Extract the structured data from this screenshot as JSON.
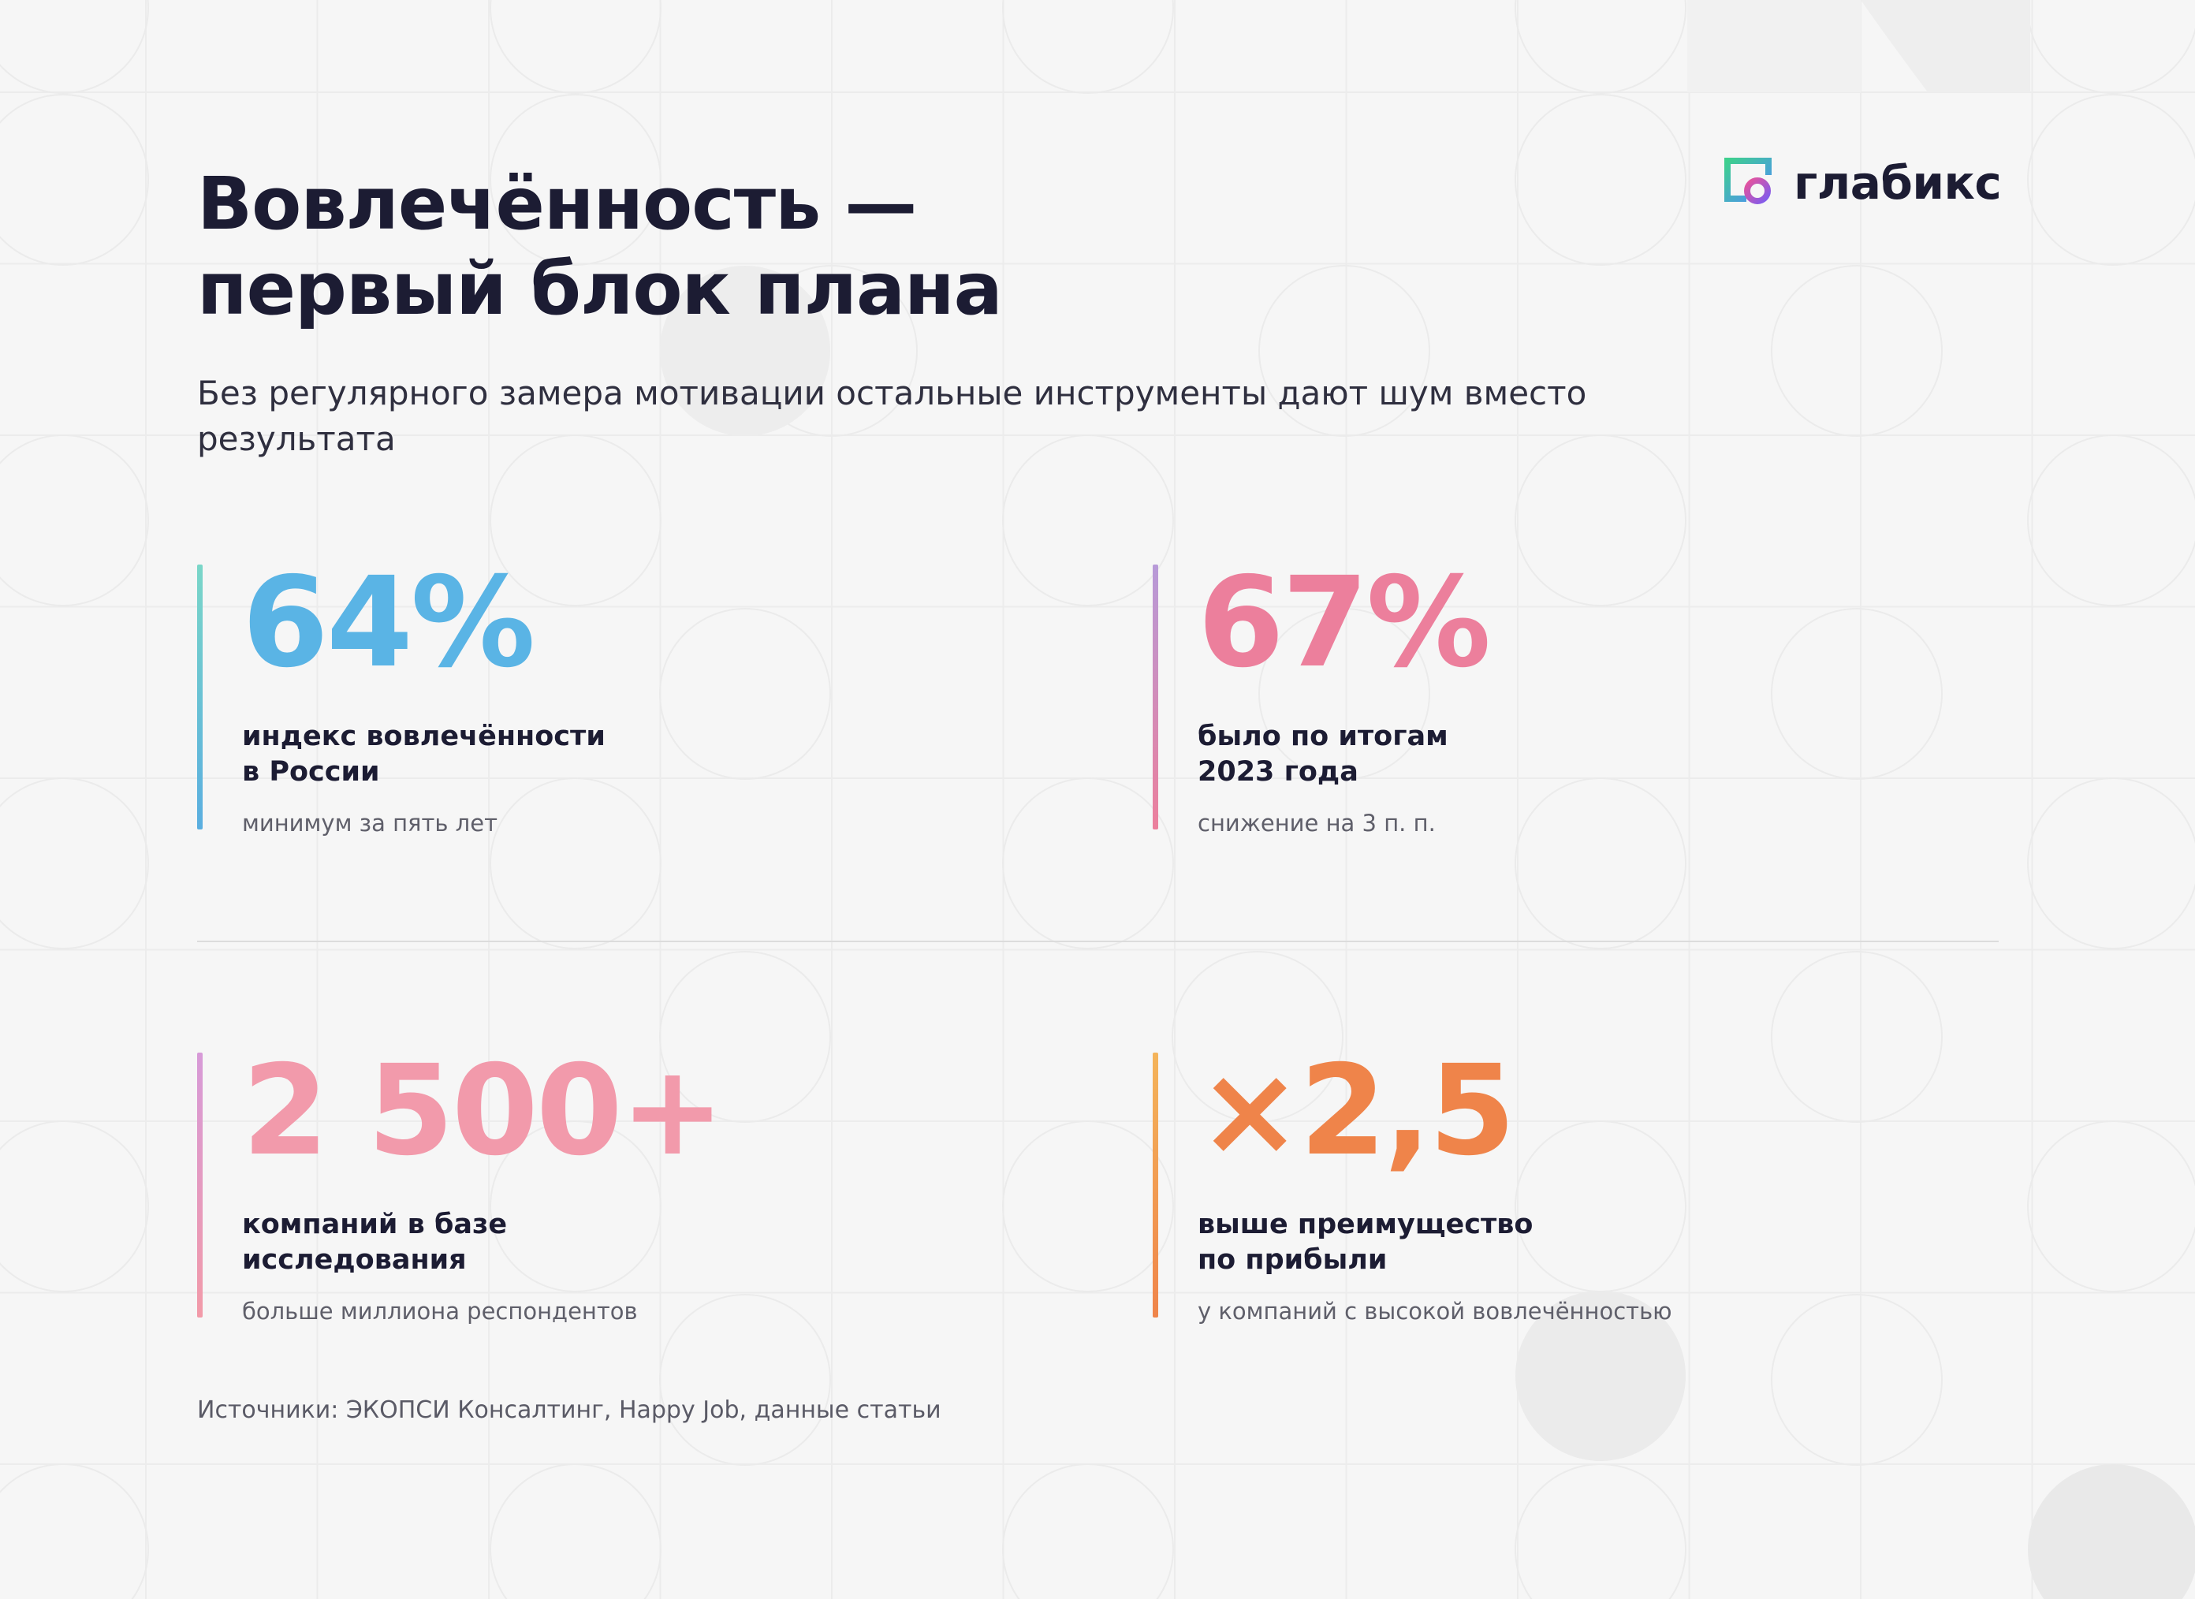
{
  "title": {
    "line1": "Вовлечённость —",
    "line2": "первый блок плана"
  },
  "subtitle": "Без регулярного замера мотивации остальные инструменты дают шум вместо результата",
  "logo": {
    "text": "глабикс",
    "icon": "glabiks-logo-icon",
    "colors": [
      "#3ecf8e",
      "#4f8ef7",
      "#e8539b",
      "#7b5cf0"
    ]
  },
  "stats": [
    {
      "value": "64%",
      "label_line1": "индекс вовлечённости",
      "label_line2": "в России",
      "note": "минимум за пять лет",
      "color": "#5ab4e5"
    },
    {
      "value": "67%",
      "label_line1": "было по итогам",
      "label_line2": "2023 года",
      "note": "снижение на 3 п. п.",
      "color": "#ec7f9c"
    },
    {
      "value": "2 500+",
      "label_line1": "компаний в базе",
      "label_line2": "исследования",
      "note": "больше миллиона респондентов",
      "color": "#f29aab"
    },
    {
      "value": "×2,5",
      "label_line1": "выше преимущество",
      "label_line2": "по прибыли",
      "note": "у компаний с высокой вовлечённостью",
      "color": "#ef844a"
    }
  ],
  "sources": "Источники: ЭКОПСИ Консалтинг, Happy Job, данные статьи"
}
